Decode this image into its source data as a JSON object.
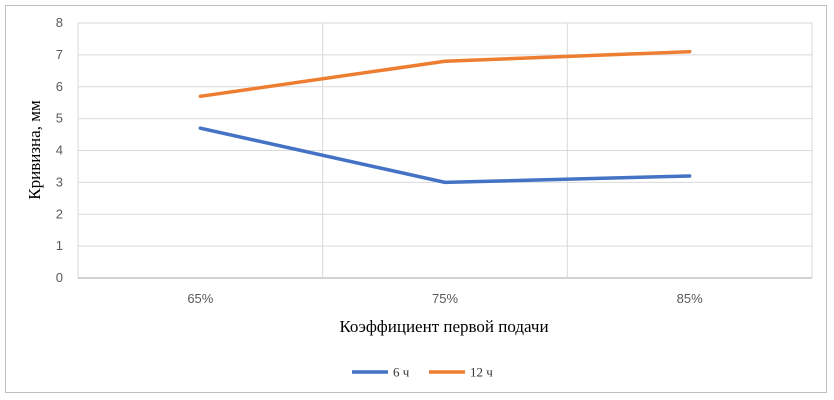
{
  "chart_data": {
    "type": "line",
    "title": "",
    "xlabel": "Коэффициент первой подачи",
    "ylabel": "Кривизна, мм",
    "categories": [
      "65%",
      "75%",
      "85%"
    ],
    "ylim": [
      0,
      8
    ],
    "yticks": [
      0,
      1,
      2,
      3,
      4,
      5,
      6,
      7,
      8
    ],
    "grid": true,
    "legend_position": "bottom",
    "series": [
      {
        "name": "6 ч",
        "values": [
          4.7,
          3.0,
          3.2
        ],
        "color": "#4472C4"
      },
      {
        "name": "12 ч",
        "values": [
          5.7,
          6.8,
          7.1
        ],
        "color": "#ED7D31"
      }
    ]
  }
}
